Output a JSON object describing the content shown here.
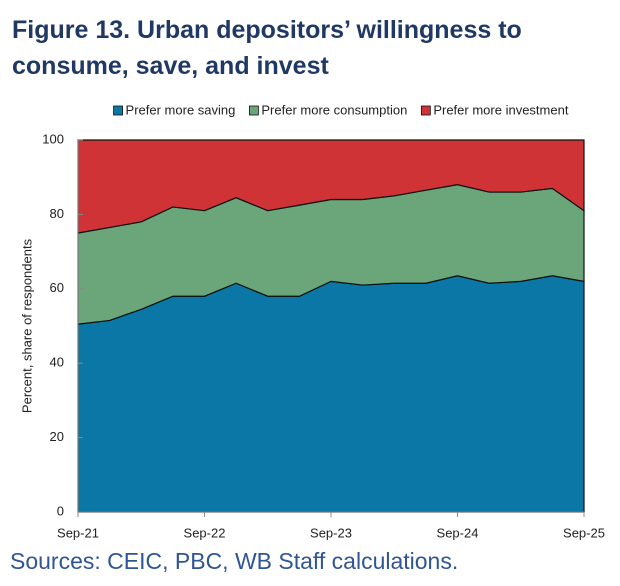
{
  "chart_data": {
    "type": "stacked-area",
    "title": "Figure 13. Urban depositors’ willingness to consume, save, and invest",
    "y_label": "Percent, share of respondents",
    "source": "Sources: CEIC, PBC, WB Staff calculations.",
    "categories": [
      "Sep-21",
      null,
      null,
      null,
      "Sep-22",
      null,
      null,
      null,
      "Sep-23",
      null,
      null,
      null,
      "Sep-24",
      null,
      null,
      null,
      "Sep-25"
    ],
    "series": [
      {
        "name": "Prefer more saving",
        "color": "#0b77a6",
        "values": [
          50.5,
          51.5,
          54.5,
          58,
          58,
          61.5,
          58,
          58,
          62,
          61,
          61.5,
          61.5,
          63.5,
          61.5,
          62,
          63.5,
          62
        ]
      },
      {
        "name": "Prefer more consumption",
        "color": "#6aa67a",
        "values": [
          24.5,
          25,
          23.5,
          24,
          23,
          23,
          23,
          24.5,
          22,
          23,
          23.5,
          25,
          24.5,
          24.5,
          24,
          23.5,
          19
        ]
      },
      {
        "name": "Prefer more investment",
        "color": "#cf3336",
        "values": [
          25,
          23.5,
          22,
          18,
          19,
          15.5,
          19,
          17.5,
          16,
          16,
          15,
          13.5,
          12,
          14,
          14,
          13,
          19
        ]
      }
    ],
    "ylim": [
      0,
      100
    ],
    "yticks": [
      0,
      20,
      40,
      60,
      80,
      100
    ],
    "legend": "top"
  }
}
